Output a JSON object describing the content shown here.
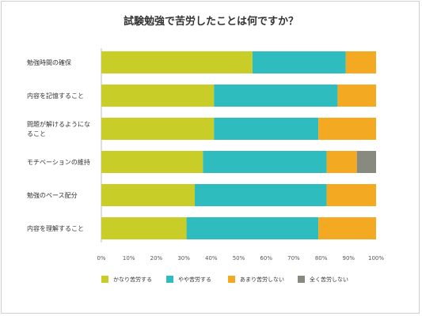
{
  "chart_data": {
    "type": "bar",
    "orientation": "horizontal",
    "stacked": true,
    "title": "試験勉強で苦労したことは何ですか？",
    "categories": [
      [
        "勉強時間の確保"
      ],
      [
        "内容を記憶すること"
      ],
      [
        "問題が解けるようにな",
        "ること"
      ],
      [
        "モチベーションの維持"
      ],
      [
        "勉強のペース配分"
      ],
      [
        "内容を理解すること"
      ]
    ],
    "series": [
      {
        "name": "かなり苦労する",
        "color": "#c9cd27",
        "values": [
          55,
          41,
          41,
          37,
          34,
          31
        ]
      },
      {
        "name": "やや苦労する",
        "color": "#2fbcbf",
        "values": [
          34,
          45,
          38,
          45,
          48,
          48
        ]
      },
      {
        "name": "あまり苦労しない",
        "color": "#f4a922",
        "values": [
          11,
          14,
          21,
          11,
          18,
          21
        ]
      },
      {
        "name": "全く苦労しない",
        "color": "#888a80",
        "values": [
          0,
          0,
          0,
          7,
          0,
          0
        ]
      }
    ],
    "xlim": [
      0,
      100
    ],
    "x_ticks": [
      "0%",
      "10%",
      "20%",
      "30%",
      "40%",
      "50%",
      "60%",
      "70%",
      "80%",
      "90%",
      "100%"
    ],
    "grid": false,
    "legend_position": "bottom"
  }
}
